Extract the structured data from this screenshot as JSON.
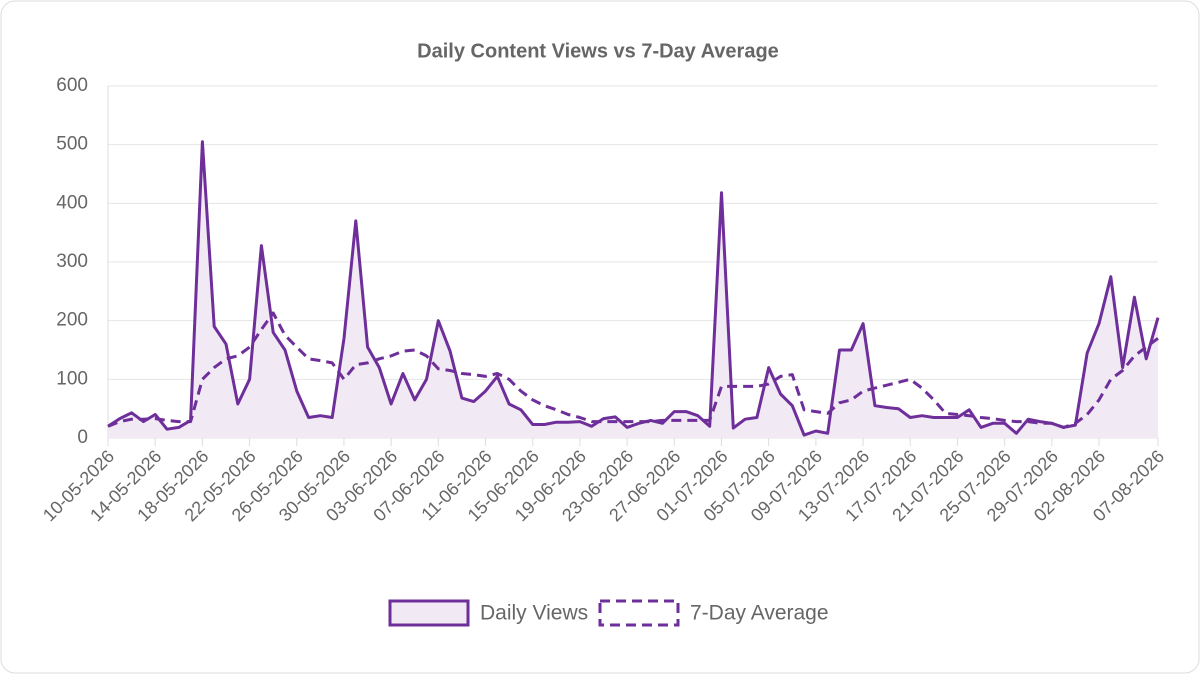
{
  "chart_data": {
    "type": "line",
    "title": "Daily Content Views vs 7-Day Average",
    "categories": [
      "10-05-2026",
      null,
      null,
      null,
      "14-05-2026",
      null,
      null,
      null,
      "18-05-2026",
      null,
      null,
      null,
      "22-05-2026",
      null,
      null,
      null,
      "26-05-2026",
      null,
      null,
      null,
      "30-05-2026",
      null,
      null,
      null,
      "03-06-2026",
      null,
      null,
      null,
      "07-06-2026",
      null,
      null,
      null,
      "11-06-2026",
      null,
      null,
      null,
      "15-06-2026",
      null,
      null,
      null,
      "19-06-2026",
      null,
      null,
      null,
      "23-06-2026",
      null,
      null,
      null,
      "27-06-2026",
      null,
      null,
      null,
      "01-07-2026",
      null,
      null,
      null,
      "05-07-2026",
      null,
      null,
      null,
      "09-07-2026",
      null,
      null,
      null,
      "13-07-2026",
      null,
      null,
      null,
      "17-07-2026",
      null,
      null,
      null,
      "21-07-2026",
      null,
      null,
      null,
      "25-07-2026",
      null,
      null,
      null,
      "29-07-2026",
      null,
      null,
      null,
      "02-08-2026",
      null,
      null,
      null,
      null,
      "07-08-2026"
    ],
    "series": [
      {
        "name": "Daily Views",
        "color": "#6e2f9a",
        "fill": "#f1eaf5",
        "dashed": false,
        "values": [
          20,
          33,
          43,
          28,
          40,
          15,
          18,
          30,
          505,
          190,
          160,
          58,
          100,
          328,
          180,
          150,
          80,
          35,
          38,
          35,
          170,
          370,
          155,
          120,
          58,
          110,
          65,
          100,
          200,
          148,
          68,
          62,
          80,
          105,
          58,
          48,
          23,
          23,
          27,
          27,
          28,
          20,
          33,
          36,
          18,
          25,
          30,
          25,
          45,
          45,
          38,
          20,
          418,
          17,
          32,
          35,
          120,
          75,
          55,
          5,
          12,
          8,
          150,
          150,
          195,
          55,
          52,
          50,
          35,
          38,
          35,
          35,
          35,
          48,
          18,
          25,
          25,
          8,
          32,
          28,
          25,
          18,
          22,
          145,
          195,
          275,
          120,
          240,
          135,
          205
        ]
      },
      {
        "name": "7-Day Average",
        "color": "#6e2f9a",
        "fill": null,
        "dashed": true,
        "values": [
          20,
          28,
          32,
          32,
          33,
          30,
          28,
          28,
          100,
          120,
          135,
          140,
          155,
          185,
          213,
          175,
          155,
          135,
          132,
          128,
          100,
          125,
          128,
          135,
          140,
          148,
          150,
          140,
          118,
          115,
          110,
          108,
          105,
          110,
          100,
          80,
          65,
          55,
          48,
          40,
          35,
          28,
          28,
          28,
          28,
          28,
          28,
          30,
          30,
          30,
          30,
          30,
          88,
          88,
          88,
          88,
          92,
          105,
          108,
          48,
          45,
          42,
          60,
          65,
          80,
          85,
          90,
          95,
          100,
          85,
          65,
          42,
          40,
          38,
          35,
          33,
          30,
          28,
          28,
          25,
          25,
          18,
          25,
          40,
          65,
          100,
          115,
          140,
          155,
          170
        ]
      }
    ],
    "ylim": [
      0,
      600
    ],
    "yticks": [
      0,
      100,
      200,
      300,
      400,
      500,
      600
    ],
    "grid": true,
    "legend": "bottom"
  }
}
